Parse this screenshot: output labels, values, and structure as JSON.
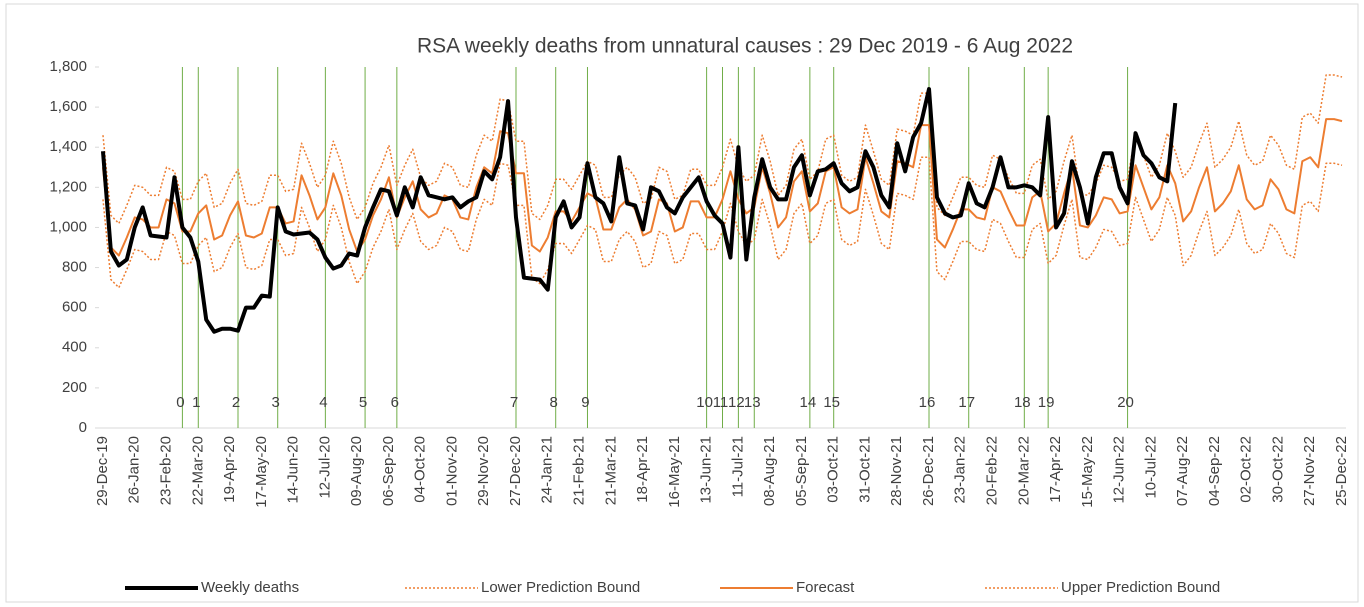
{
  "chart_data": {
    "type": "line",
    "title": "RSA weekly deaths from unnatural causes : 29 Dec 2019  - 6 Aug 2022",
    "categories": [
      "29-Dec-19",
      null,
      null,
      null,
      "26-Jan-20",
      null,
      null,
      null,
      "23-Feb-20",
      null,
      null,
      null,
      "22-Mar-20",
      null,
      null,
      null,
      "19-Apr-20",
      null,
      null,
      null,
      "17-May-20",
      null,
      null,
      null,
      "14-Jun-20",
      null,
      null,
      null,
      "12-Jul-20",
      null,
      null,
      null,
      "09-Aug-20",
      null,
      null,
      null,
      "06-Sep-20",
      null,
      null,
      null,
      "04-Oct-20",
      null,
      null,
      null,
      "01-Nov-20",
      null,
      null,
      null,
      "29-Nov-20",
      null,
      null,
      null,
      "27-Dec-20",
      null,
      null,
      null,
      "24-Jan-21",
      null,
      null,
      null,
      "21-Feb-21",
      null,
      null,
      null,
      "21-Mar-21",
      null,
      null,
      null,
      "18-Apr-21",
      null,
      null,
      null,
      "16-May-21",
      null,
      null,
      null,
      "13-Jun-21",
      null,
      null,
      null,
      "11-Jul-21",
      null,
      null,
      null,
      "08-Aug-21",
      null,
      null,
      null,
      "05-Sep-21",
      null,
      null,
      null,
      "03-Oct-21",
      null,
      null,
      null,
      "31-Oct-21",
      null,
      null,
      null,
      "28-Nov-21",
      null,
      null,
      null,
      "26-Dec-21",
      null,
      null,
      null,
      "23-Jan-22",
      null,
      null,
      null,
      "20-Feb-22",
      null,
      null,
      null,
      "20-Mar-22",
      null,
      null,
      null,
      "17-Apr-22",
      null,
      null,
      null,
      "15-May-22",
      null,
      null,
      null,
      "12-Jun-22",
      null,
      null,
      null,
      "10-Jul-22",
      null,
      null,
      null,
      "07-Aug-22",
      null,
      null,
      null,
      "04-Sep-22",
      null,
      null,
      null,
      "02-Oct-22",
      null,
      null,
      null,
      "30-Oct-22",
      null,
      null,
      null,
      "27-Nov-22",
      null,
      null,
      null,
      "25-Dec-22"
    ],
    "series": [
      {
        "name": "Weekly deaths",
        "color": "#000000",
        "line_width": 4,
        "line_style": "solid",
        "values": [
          1380,
          880,
          810,
          840,
          1000,
          1100,
          960,
          955,
          950,
          1250,
          1000,
          950,
          830,
          540,
          480,
          495,
          495,
          485,
          600,
          600,
          660,
          655,
          1100,
          980,
          965,
          970,
          975,
          940,
          850,
          795,
          810,
          870,
          860,
          1000,
          1100,
          1190,
          1180,
          1060,
          1200,
          1100,
          1250,
          1160,
          1150,
          1140,
          1150,
          1100,
          1130,
          1150,
          1280,
          1240,
          1350,
          1630,
          1050,
          750,
          745,
          740,
          690,
          1050,
          1130,
          1000,
          1050,
          1320,
          1150,
          1120,
          1030,
          1350,
          1120,
          1110,
          990,
          1200,
          1180,
          1100,
          1070,
          1150,
          1200,
          1250,
          1130,
          1060,
          1020,
          850,
          1400,
          840,
          1150,
          1340,
          1200,
          1140,
          1140,
          1300,
          1360,
          1160,
          1280,
          1290,
          1320,
          1220,
          1180,
          1200,
          1380,
          1300,
          1160,
          1100,
          1420,
          1280,
          1450,
          1520,
          1690,
          1150,
          1070,
          1050,
          1060,
          1220,
          1120,
          1100,
          1200,
          1350,
          1200,
          1200,
          1210,
          1200,
          1160,
          1550,
          1000,
          1070,
          1330,
          1200,
          1020,
          1250,
          1370,
          1370,
          1200,
          1120,
          1470,
          1360,
          1320,
          1250,
          1230,
          1620,
          null,
          null,
          null,
          null,
          null,
          null,
          null,
          null,
          null,
          null,
          null,
          null,
          null,
          null,
          null,
          null,
          null,
          null,
          null,
          null,
          null
        ]
      },
      {
        "name": "Lower Prediction Bound",
        "color": "#ed7d31",
        "line_width": 1.5,
        "line_style": "dotted",
        "values": [
          1140,
          740,
          700,
          790,
          890,
          880,
          840,
          840,
          980,
          960,
          820,
          820,
          910,
          950,
          780,
          800,
          900,
          970,
          800,
          790,
          810,
          940,
          940,
          860,
          870,
          1100,
          1000,
          880,
          940,
          1110,
          1000,
          830,
          720,
          780,
          900,
          980,
          1090,
          890,
          990,
          1070,
          930,
          890,
          910,
          1000,
          980,
          890,
          880,
          1040,
          1140,
          1110,
          1320,
          1310,
          1110,
          1110,
          750,
          720,
          790,
          920,
          920,
          870,
          940,
          1010,
          990,
          830,
          830,
          940,
          980,
          930,
          800,
          820,
          980,
          960,
          820,
          840,
          970,
          970,
          890,
          890,
          980,
          1120,
          980,
          910,
          940,
          1140,
          1010,
          840,
          890,
          1070,
          1120,
          920,
          960,
          1120,
          1140,
          940,
          910,
          930,
          1190,
          1060,
          920,
          890,
          1170,
          1160,
          1140,
          1350,
          1350,
          780,
          740,
          830,
          930,
          930,
          890,
          880,
          1040,
          1020,
          930,
          850,
          850,
          990,
          1020,
          820,
          860,
          1010,
          1140,
          850,
          840,
          900,
          990,
          980,
          910,
          920,
          1150,
          1040,
          930,
          990,
          1150,
          1060,
          810,
          860,
          980,
          1080,
          860,
          900,
          960,
          1090,
          920,
          870,
          890,
          1020,
          970,
          870,
          850,
          1110,
          1130,
          1080,
          1320,
          1320,
          1310
        ]
      },
      {
        "name": "Forecast",
        "color": "#ed7d31",
        "line_width": 2,
        "line_style": "solid",
        "values": [
          1300,
          900,
          860,
          950,
          1050,
          1040,
          1000,
          1000,
          1140,
          1120,
          980,
          980,
          1070,
          1110,
          940,
          960,
          1060,
          1130,
          960,
          950,
          970,
          1100,
          1100,
          1020,
          1030,
          1260,
          1160,
          1040,
          1100,
          1270,
          1160,
          990,
          880,
          940,
          1060,
          1140,
          1250,
          1050,
          1150,
          1230,
          1090,
          1050,
          1070,
          1160,
          1140,
          1050,
          1040,
          1200,
          1300,
          1270,
          1480,
          1470,
          1270,
          1270,
          910,
          880,
          950,
          1080,
          1080,
          1030,
          1100,
          1170,
          1150,
          990,
          990,
          1100,
          1140,
          1090,
          960,
          980,
          1140,
          1120,
          980,
          1000,
          1130,
          1130,
          1050,
          1050,
          1140,
          1280,
          1140,
          1070,
          1100,
          1300,
          1170,
          1000,
          1050,
          1230,
          1280,
          1080,
          1120,
          1280,
          1300,
          1100,
          1070,
          1090,
          1350,
          1220,
          1080,
          1050,
          1330,
          1320,
          1300,
          1510,
          1510,
          940,
          900,
          990,
          1090,
          1090,
          1050,
          1040,
          1200,
          1180,
          1090,
          1010,
          1010,
          1150,
          1180,
          980,
          1020,
          1170,
          1300,
          1010,
          1000,
          1060,
          1150,
          1140,
          1070,
          1080,
          1310,
          1200,
          1090,
          1150,
          1310,
          1220,
          1030,
          1080,
          1200,
          1300,
          1080,
          1120,
          1180,
          1310,
          1140,
          1090,
          1110,
          1240,
          1190,
          1090,
          1070,
          1330,
          1350,
          1300,
          1540,
          1540,
          1530
        ]
      },
      {
        "name": "Upper Prediction Bound",
        "color": "#ed7d31",
        "line_width": 1.5,
        "line_style": "dotted",
        "values": [
          1460,
          1060,
          1020,
          1110,
          1210,
          1200,
          1160,
          1160,
          1300,
          1280,
          1140,
          1140,
          1230,
          1270,
          1100,
          1120,
          1220,
          1290,
          1120,
          1110,
          1130,
          1260,
          1260,
          1180,
          1190,
          1420,
          1320,
          1200,
          1260,
          1430,
          1320,
          1150,
          1040,
          1100,
          1220,
          1300,
          1410,
          1210,
          1310,
          1390,
          1250,
          1210,
          1230,
          1320,
          1300,
          1210,
          1200,
          1360,
          1460,
          1430,
          1640,
          1630,
          1430,
          1430,
          1070,
          1040,
          1110,
          1240,
          1240,
          1190,
          1260,
          1330,
          1310,
          1150,
          1150,
          1260,
          1300,
          1250,
          1120,
          1140,
          1300,
          1280,
          1140,
          1160,
          1290,
          1290,
          1210,
          1210,
          1300,
          1440,
          1300,
          1230,
          1260,
          1460,
          1330,
          1160,
          1210,
          1390,
          1440,
          1240,
          1280,
          1440,
          1460,
          1260,
          1230,
          1250,
          1510,
          1380,
          1240,
          1210,
          1490,
          1480,
          1460,
          1670,
          1670,
          1100,
          1060,
          1150,
          1250,
          1250,
          1210,
          1200,
          1360,
          1340,
          1250,
          1170,
          1170,
          1310,
          1340,
          1140,
          1180,
          1330,
          1460,
          1170,
          1160,
          1220,
          1310,
          1300,
          1230,
          1240,
          1470,
          1360,
          1250,
          1310,
          1470,
          1380,
          1250,
          1300,
          1420,
          1520,
          1300,
          1340,
          1400,
          1530,
          1360,
          1310,
          1330,
          1460,
          1410,
          1310,
          1290,
          1550,
          1570,
          1520,
          1760,
          1760,
          1750
        ]
      }
    ],
    "annotations": [
      {
        "label": "0",
        "index": 10
      },
      {
        "label": "1",
        "index": 12
      },
      {
        "label": "2",
        "index": 17
      },
      {
        "label": "3",
        "index": 22
      },
      {
        "label": "4",
        "index": 28
      },
      {
        "label": "5",
        "index": 33
      },
      {
        "label": "6",
        "index": 37
      },
      {
        "label": "7",
        "index": 52
      },
      {
        "label": "8",
        "index": 57
      },
      {
        "label": "9",
        "index": 61
      },
      {
        "label": "10",
        "index": 76
      },
      {
        "label": "11",
        "index": 78
      },
      {
        "label": "12",
        "index": 80
      },
      {
        "label": "13",
        "index": 82
      },
      {
        "label": "14",
        "index": 89
      },
      {
        "label": "15",
        "index": 92
      },
      {
        "label": "16",
        "index": 104
      },
      {
        "label": "17",
        "index": 109
      },
      {
        "label": "18",
        "index": 116
      },
      {
        "label": "19",
        "index": 119
      },
      {
        "label": "20",
        "index": 129
      }
    ],
    "annotation_color": "#70ad47",
    "ylim": [
      0,
      1800
    ],
    "yticks": [
      0,
      {
        "value": 200,
        "label": "200"
      },
      {
        "value": 400,
        "label": "400"
      },
      {
        "value": 600,
        "label": "600"
      },
      {
        "value": 800,
        "label": "800"
      },
      {
        "value": 1000,
        "label": "1,000"
      },
      {
        "value": 1200,
        "label": "1,200"
      },
      {
        "value": 1400,
        "label": "1,400"
      },
      {
        "value": 1600,
        "label": "1,600"
      },
      {
        "value": 1800,
        "label": "1,800"
      }
    ],
    "grid": false,
    "legend": "bottom"
  }
}
